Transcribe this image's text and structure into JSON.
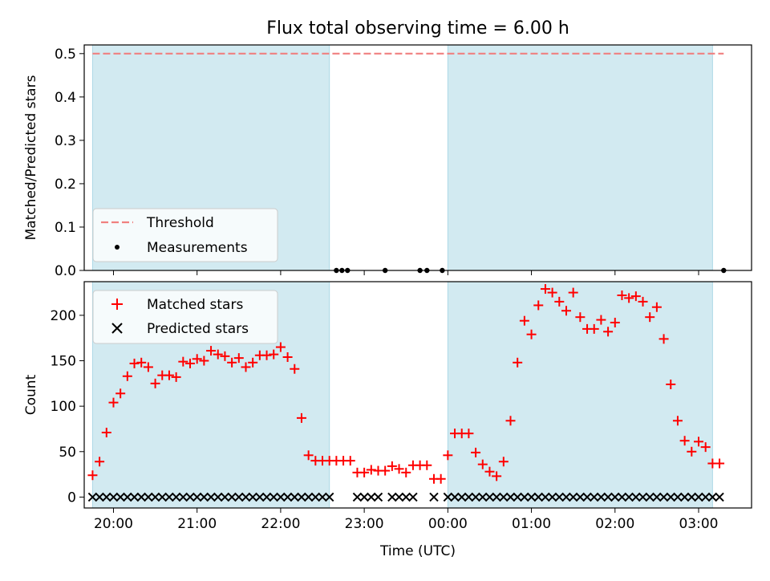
{
  "chart_data": {
    "type": "scatter",
    "title": "Flux total observing time = 6.00 h",
    "xlabel": "Time (UTC)",
    "x_ticks": [
      "20:00",
      "21:00",
      "22:00",
      "23:00",
      "00:00",
      "01:00",
      "02:00",
      "03:00"
    ],
    "x_range": [
      "19:39",
      "03:38"
    ],
    "shaded_intervals": [
      [
        "19:45",
        "22:35"
      ],
      [
        "00:00",
        "03:10"
      ]
    ],
    "shade_color": "#add8e6",
    "top_panel": {
      "ylabel": "Matched/Predicted stars",
      "ylim": [
        0,
        0.52
      ],
      "yticks": [
        "0.0",
        "0.1",
        "0.2",
        "0.3",
        "0.4",
        "0.5"
      ],
      "legend_position": "lower-left",
      "threshold": {
        "name": "Threshold",
        "value": 0.5,
        "x_start": "19:45",
        "x_end": "03:18",
        "color": "#f08080"
      },
      "measurements": {
        "name": "Measurements",
        "color": "#000000",
        "points": [
          {
            "x": "22:40",
            "y": 0
          },
          {
            "x": "22:44",
            "y": 0
          },
          {
            "x": "22:48",
            "y": 0
          },
          {
            "x": "23:15",
            "y": 0
          },
          {
            "x": "23:40",
            "y": 0
          },
          {
            "x": "23:45",
            "y": 0
          },
          {
            "x": "23:56",
            "y": 0
          },
          {
            "x": "03:18",
            "y": 0
          }
        ]
      }
    },
    "bottom_panel": {
      "ylabel": "Count",
      "ylim": [
        -12,
        237
      ],
      "yticks": [
        "0",
        "50",
        "100",
        "150",
        "200"
      ],
      "legend_position": "top-left",
      "series": [
        {
          "name": "Matched stars",
          "marker": "+",
          "color": "#ff0000",
          "points": [
            {
              "x": "19:45",
              "y": 24
            },
            {
              "x": "19:50",
              "y": 39
            },
            {
              "x": "19:55",
              "y": 71
            },
            {
              "x": "20:00",
              "y": 104
            },
            {
              "x": "20:05",
              "y": 114
            },
            {
              "x": "20:10",
              "y": 133
            },
            {
              "x": "20:15",
              "y": 147
            },
            {
              "x": "20:20",
              "y": 148
            },
            {
              "x": "20:25",
              "y": 143
            },
            {
              "x": "20:30",
              "y": 125
            },
            {
              "x": "20:35",
              "y": 134
            },
            {
              "x": "20:40",
              "y": 134
            },
            {
              "x": "20:45",
              "y": 132
            },
            {
              "x": "20:50",
              "y": 149
            },
            {
              "x": "20:55",
              "y": 147
            },
            {
              "x": "21:00",
              "y": 152
            },
            {
              "x": "21:05",
              "y": 150
            },
            {
              "x": "21:10",
              "y": 161
            },
            {
              "x": "21:15",
              "y": 157
            },
            {
              "x": "21:20",
              "y": 155
            },
            {
              "x": "21:25",
              "y": 148
            },
            {
              "x": "21:30",
              "y": 153
            },
            {
              "x": "21:35",
              "y": 143
            },
            {
              "x": "21:40",
              "y": 148
            },
            {
              "x": "21:45",
              "y": 156
            },
            {
              "x": "21:50",
              "y": 156
            },
            {
              "x": "21:55",
              "y": 157
            },
            {
              "x": "22:00",
              "y": 165
            },
            {
              "x": "22:05",
              "y": 154
            },
            {
              "x": "22:10",
              "y": 141
            },
            {
              "x": "22:15",
              "y": 87
            },
            {
              "x": "22:20",
              "y": 46
            },
            {
              "x": "22:25",
              "y": 40
            },
            {
              "x": "22:30",
              "y": 40
            },
            {
              "x": "22:35",
              "y": 40
            },
            {
              "x": "22:40",
              "y": 40
            },
            {
              "x": "22:45",
              "y": 40
            },
            {
              "x": "22:50",
              "y": 40
            },
            {
              "x": "22:55",
              "y": 27
            },
            {
              "x": "23:00",
              "y": 27
            },
            {
              "x": "23:05",
              "y": 30
            },
            {
              "x": "23:10",
              "y": 29
            },
            {
              "x": "23:15",
              "y": 29
            },
            {
              "x": "23:20",
              "y": 34
            },
            {
              "x": "23:25",
              "y": 31
            },
            {
              "x": "23:30",
              "y": 27
            },
            {
              "x": "23:35",
              "y": 35
            },
            {
              "x": "23:40",
              "y": 35
            },
            {
              "x": "23:45",
              "y": 35
            },
            {
              "x": "23:50",
              "y": 20
            },
            {
              "x": "23:55",
              "y": 20
            },
            {
              "x": "00:00",
              "y": 46
            },
            {
              "x": "00:05",
              "y": 70
            },
            {
              "x": "00:10",
              "y": 70
            },
            {
              "x": "00:15",
              "y": 70
            },
            {
              "x": "00:20",
              "y": 49
            },
            {
              "x": "00:25",
              "y": 36
            },
            {
              "x": "00:30",
              "y": 28
            },
            {
              "x": "00:35",
              "y": 23
            },
            {
              "x": "00:40",
              "y": 39
            },
            {
              "x": "00:45",
              "y": 84
            },
            {
              "x": "00:50",
              "y": 148
            },
            {
              "x": "00:55",
              "y": 194
            },
            {
              "x": "01:00",
              "y": 179
            },
            {
              "x": "01:05",
              "y": 211
            },
            {
              "x": "01:10",
              "y": 229
            },
            {
              "x": "01:15",
              "y": 225
            },
            {
              "x": "01:20",
              "y": 215
            },
            {
              "x": "01:25",
              "y": 205
            },
            {
              "x": "01:30",
              "y": 225
            },
            {
              "x": "01:35",
              "y": 198
            },
            {
              "x": "01:40",
              "y": 185
            },
            {
              "x": "01:45",
              "y": 185
            },
            {
              "x": "01:50",
              "y": 195
            },
            {
              "x": "01:55",
              "y": 182
            },
            {
              "x": "02:00",
              "y": 192
            },
            {
              "x": "02:05",
              "y": 222
            },
            {
              "x": "02:10",
              "y": 219
            },
            {
              "x": "02:15",
              "y": 221
            },
            {
              "x": "02:20",
              "y": 215
            },
            {
              "x": "02:25",
              "y": 198
            },
            {
              "x": "02:30",
              "y": 209
            },
            {
              "x": "02:35",
              "y": 174
            },
            {
              "x": "02:40",
              "y": 124
            },
            {
              "x": "02:45",
              "y": 84
            },
            {
              "x": "02:50",
              "y": 62
            },
            {
              "x": "02:55",
              "y": 50
            },
            {
              "x": "03:00",
              "y": 61
            },
            {
              "x": "03:05",
              "y": 55
            },
            {
              "x": "03:10",
              "y": 37
            },
            {
              "x": "03:15",
              "y": 37
            }
          ]
        },
        {
          "name": "Predicted stars",
          "marker": "x",
          "color": "#000000",
          "points": [
            {
              "x": "19:45",
              "y": 0
            },
            {
              "x": "19:50",
              "y": 0
            },
            {
              "x": "19:55",
              "y": 0
            },
            {
              "x": "20:00",
              "y": 0
            },
            {
              "x": "20:05",
              "y": 0
            },
            {
              "x": "20:10",
              "y": 0
            },
            {
              "x": "20:15",
              "y": 0
            },
            {
              "x": "20:20",
              "y": 0
            },
            {
              "x": "20:25",
              "y": 0
            },
            {
              "x": "20:30",
              "y": 0
            },
            {
              "x": "20:35",
              "y": 0
            },
            {
              "x": "20:40",
              "y": 0
            },
            {
              "x": "20:45",
              "y": 0
            },
            {
              "x": "20:50",
              "y": 0
            },
            {
              "x": "20:55",
              "y": 0
            },
            {
              "x": "21:00",
              "y": 0
            },
            {
              "x": "21:05",
              "y": 0
            },
            {
              "x": "21:10",
              "y": 0
            },
            {
              "x": "21:15",
              "y": 0
            },
            {
              "x": "21:20",
              "y": 0
            },
            {
              "x": "21:25",
              "y": 0
            },
            {
              "x": "21:30",
              "y": 0
            },
            {
              "x": "21:35",
              "y": 0
            },
            {
              "x": "21:40",
              "y": 0
            },
            {
              "x": "21:45",
              "y": 0
            },
            {
              "x": "21:50",
              "y": 0
            },
            {
              "x": "21:55",
              "y": 0
            },
            {
              "x": "22:00",
              "y": 0
            },
            {
              "x": "22:05",
              "y": 0
            },
            {
              "x": "22:10",
              "y": 0
            },
            {
              "x": "22:15",
              "y": 0
            },
            {
              "x": "22:20",
              "y": 0
            },
            {
              "x": "22:25",
              "y": 0
            },
            {
              "x": "22:30",
              "y": 0
            },
            {
              "x": "22:35",
              "y": 0
            },
            {
              "x": "22:55",
              "y": 0
            },
            {
              "x": "23:00",
              "y": 0
            },
            {
              "x": "23:05",
              "y": 0
            },
            {
              "x": "23:10",
              "y": 0
            },
            {
              "x": "23:20",
              "y": 0
            },
            {
              "x": "23:25",
              "y": 0
            },
            {
              "x": "23:30",
              "y": 0
            },
            {
              "x": "23:35",
              "y": 0
            },
            {
              "x": "23:50",
              "y": 0
            },
            {
              "x": "00:00",
              "y": 0
            },
            {
              "x": "00:05",
              "y": 0
            },
            {
              "x": "00:10",
              "y": 0
            },
            {
              "x": "00:15",
              "y": 0
            },
            {
              "x": "00:20",
              "y": 0
            },
            {
              "x": "00:25",
              "y": 0
            },
            {
              "x": "00:30",
              "y": 0
            },
            {
              "x": "00:35",
              "y": 0
            },
            {
              "x": "00:40",
              "y": 0
            },
            {
              "x": "00:45",
              "y": 0
            },
            {
              "x": "00:50",
              "y": 0
            },
            {
              "x": "00:55",
              "y": 0
            },
            {
              "x": "01:00",
              "y": 0
            },
            {
              "x": "01:05",
              "y": 0
            },
            {
              "x": "01:10",
              "y": 0
            },
            {
              "x": "01:15",
              "y": 0
            },
            {
              "x": "01:20",
              "y": 0
            },
            {
              "x": "01:25",
              "y": 0
            },
            {
              "x": "01:30",
              "y": 0
            },
            {
              "x": "01:35",
              "y": 0
            },
            {
              "x": "01:40",
              "y": 0
            },
            {
              "x": "01:45",
              "y": 0
            },
            {
              "x": "01:50",
              "y": 0
            },
            {
              "x": "01:55",
              "y": 0
            },
            {
              "x": "02:00",
              "y": 0
            },
            {
              "x": "02:05",
              "y": 0
            },
            {
              "x": "02:10",
              "y": 0
            },
            {
              "x": "02:15",
              "y": 0
            },
            {
              "x": "02:20",
              "y": 0
            },
            {
              "x": "02:25",
              "y": 0
            },
            {
              "x": "02:30",
              "y": 0
            },
            {
              "x": "02:35",
              "y": 0
            },
            {
              "x": "02:40",
              "y": 0
            },
            {
              "x": "02:45",
              "y": 0
            },
            {
              "x": "02:50",
              "y": 0
            },
            {
              "x": "02:55",
              "y": 0
            },
            {
              "x": "03:00",
              "y": 0
            },
            {
              "x": "03:05",
              "y": 0
            },
            {
              "x": "03:10",
              "y": 0
            },
            {
              "x": "03:15",
              "y": 0
            }
          ]
        }
      ]
    }
  }
}
